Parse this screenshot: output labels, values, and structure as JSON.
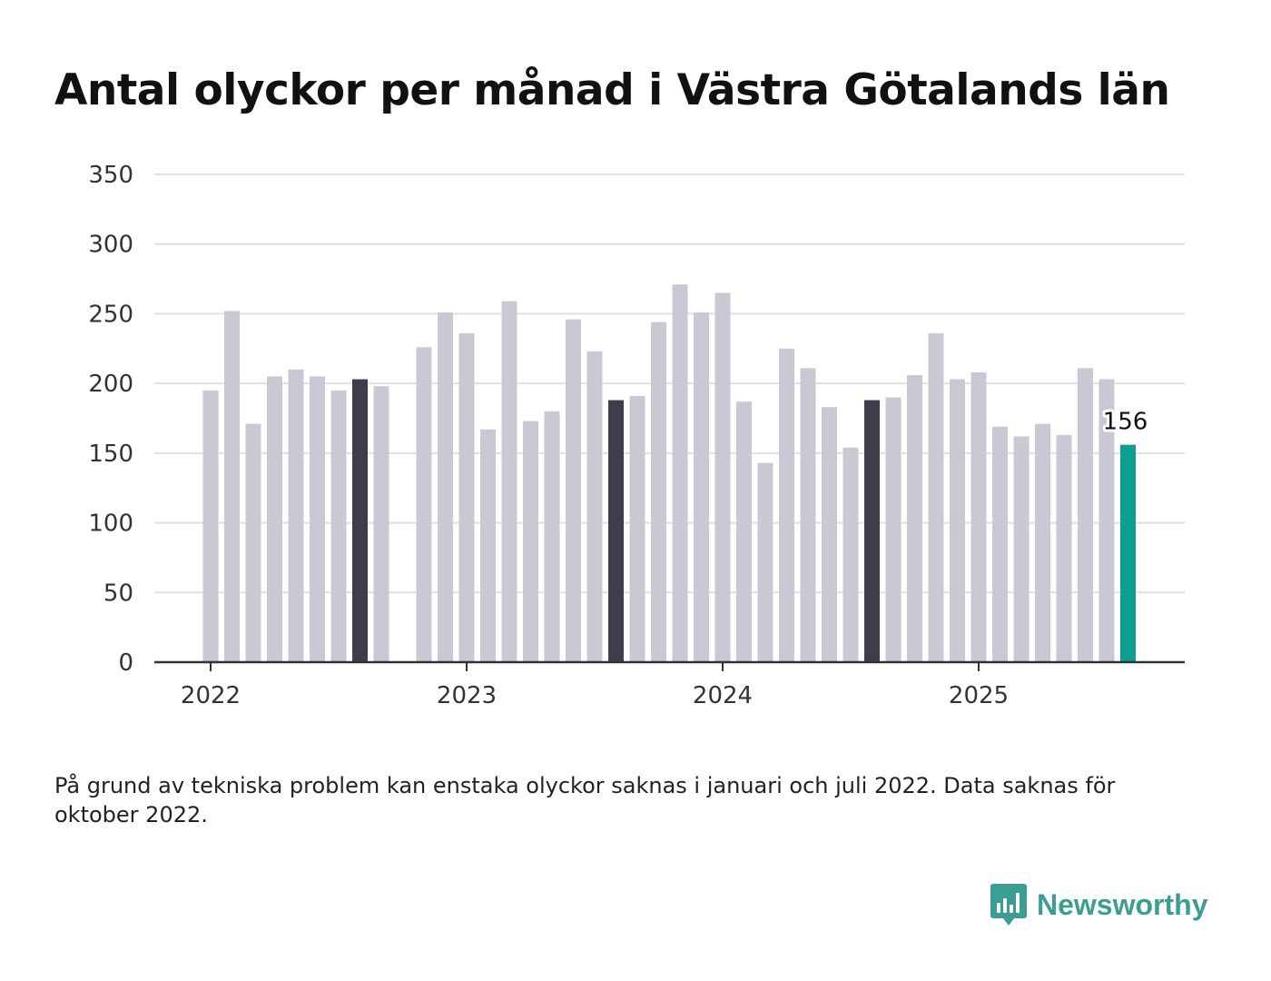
{
  "title": "Antal olyckor per månad i Västra Götalands län",
  "footnote": "På grund av tekniska problem kan enstaka olyckor saknas i januari och juli 2022. Data saknas för oktober 2022.",
  "brand": {
    "name": "Newsworthy",
    "icon": "newsworthy-bar-chart-logo-icon"
  },
  "colors": {
    "bar_default": "#c9c8d3",
    "bar_highlight": "#3e3d4b",
    "bar_latest": "#0d9e92",
    "gridline": "#e0e0e0",
    "axis": "#333333",
    "brand": "#3a9e92"
  },
  "chart_data": {
    "type": "bar",
    "title": "Antal olyckor per månad i Västra Götalands län",
    "xlabel": "",
    "ylabel": "",
    "ylim": [
      0,
      350
    ],
    "yticks": [
      0,
      50,
      100,
      150,
      200,
      250,
      300,
      350
    ],
    "xtick_labels": [
      "2022",
      "2023",
      "2024",
      "2025"
    ],
    "grid": true,
    "categories": [
      "2022-01",
      "2022-02",
      "2022-03",
      "2022-04",
      "2022-05",
      "2022-06",
      "2022-07",
      "2022-08",
      "2022-09",
      "2022-10",
      "2022-11",
      "2022-12",
      "2023-01",
      "2023-02",
      "2023-03",
      "2023-04",
      "2023-05",
      "2023-06",
      "2023-07",
      "2023-08",
      "2023-09",
      "2023-10",
      "2023-11",
      "2023-12",
      "2024-01",
      "2024-02",
      "2024-03",
      "2024-04",
      "2024-05",
      "2024-06",
      "2024-07",
      "2024-08",
      "2024-09",
      "2024-10",
      "2024-11",
      "2024-12",
      "2025-01",
      "2025-02",
      "2025-03",
      "2025-04",
      "2025-05",
      "2025-06",
      "2025-07",
      "2025-08"
    ],
    "values": [
      195,
      252,
      171,
      205,
      210,
      205,
      195,
      203,
      198,
      null,
      226,
      251,
      236,
      167,
      259,
      173,
      180,
      246,
      223,
      188,
      191,
      244,
      271,
      251,
      265,
      187,
      143,
      225,
      211,
      183,
      154,
      188,
      190,
      206,
      236,
      203,
      208,
      169,
      162,
      171,
      163,
      211,
      203,
      156
    ],
    "highlighted_months": [
      "2022-08",
      "2023-08",
      "2024-08"
    ],
    "latest": {
      "month": "2025-08",
      "value": 156,
      "label": "156"
    }
  }
}
